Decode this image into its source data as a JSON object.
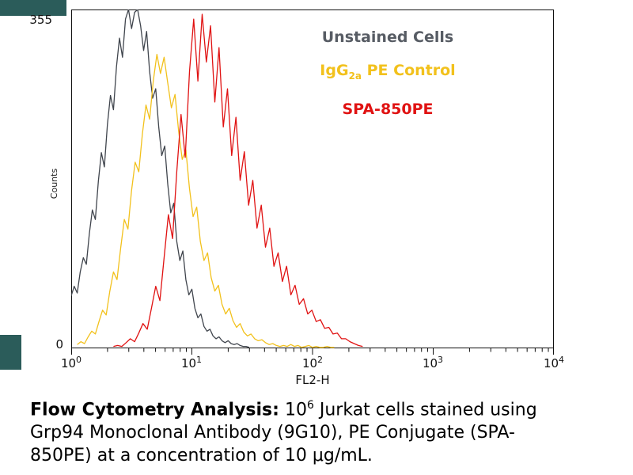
{
  "page": {
    "background": "#ffffff"
  },
  "watermark": {
    "color": "#2b5c5a"
  },
  "axis": {
    "y_max_label": "355",
    "y_min_label": "0",
    "y_title": "Counts",
    "x_title": "FL2-H",
    "x_ticks": [
      {
        "base": "10",
        "exp": "0"
      },
      {
        "base": "10",
        "exp": "1"
      },
      {
        "base": "10",
        "exp": "2"
      },
      {
        "base": "10",
        "exp": "3"
      },
      {
        "base": "10",
        "exp": "4"
      }
    ]
  },
  "legend": {
    "unstained": {
      "label": "Unstained Cells",
      "color": "#575c64"
    },
    "igg2a": {
      "pre": "IgG",
      "sub": "2a",
      "post": "  PE Control",
      "color": "#f2c11c"
    },
    "spa": {
      "label": "SPA-850PE",
      "color": "#e01212"
    }
  },
  "caption": {
    "bold": "Flow Cytometry Analysis:",
    "line1_pre_sup": " 10",
    "line1_sup": "6",
    "line1_rest": " Jurkat cells stained using",
    "line2": "Grp94 Monoclonal Antibody (9G10), PE Conjugate (SPA-",
    "line3": "850PE) at a concentration of 10 μg/mL."
  },
  "chart_data": {
    "type": "line",
    "subtype": "flow-cytometry-histogram",
    "title": "",
    "xlabel": "FL2-H",
    "ylabel": "Counts",
    "x_scale": "log10",
    "x_decades": [
      0,
      4
    ],
    "ylim": [
      0,
      355
    ],
    "y_tick_labels": [
      "0",
      "355"
    ],
    "grid": false,
    "legend_position": "top-right-inside",
    "series": [
      {
        "name": "Unstained Cells",
        "color": "#40454d",
        "x_start": 0.0,
        "x_step": 0.025,
        "values": [
          55,
          65,
          58,
          80,
          95,
          88,
          120,
          145,
          135,
          175,
          205,
          190,
          235,
          265,
          250,
          295,
          325,
          305,
          345,
          355,
          335,
          352,
          355,
          338,
          312,
          332,
          290,
          262,
          272,
          232,
          202,
          212,
          172,
          142,
          152,
          112,
          92,
          102,
          72,
          56,
          62,
          42,
          32,
          36,
          23,
          18,
          20,
          13,
          10,
          12,
          8,
          6,
          8,
          5,
          4,
          5,
          3,
          2,
          2,
          1
        ]
      },
      {
        "name": "IgG2a PE Control",
        "color": "#f2c11c",
        "x_start": 0.05,
        "x_step": 0.03,
        "values": [
          4,
          7,
          5,
          12,
          18,
          15,
          28,
          40,
          35,
          60,
          80,
          72,
          105,
          135,
          125,
          165,
          195,
          185,
          225,
          255,
          240,
          280,
          308,
          288,
          305,
          278,
          252,
          266,
          228,
          198,
          208,
          168,
          138,
          148,
          112,
          92,
          100,
          74,
          60,
          66,
          46,
          36,
          42,
          29,
          22,
          26,
          17,
          13,
          15,
          10,
          8,
          9,
          6,
          4,
          5,
          3,
          2,
          3,
          2,
          4,
          2,
          3,
          1,
          2,
          3,
          1,
          2,
          1,
          1,
          2,
          1,
          1
        ]
      },
      {
        "name": "SPA-850PE",
        "color": "#e01212",
        "x_start": 0.35,
        "x_step": 0.035,
        "values": [
          2,
          3,
          2,
          6,
          10,
          7,
          16,
          26,
          20,
          42,
          65,
          50,
          95,
          140,
          115,
          185,
          245,
          200,
          290,
          345,
          280,
          350,
          300,
          338,
          258,
          315,
          232,
          272,
          202,
          242,
          176,
          206,
          150,
          176,
          126,
          150,
          106,
          126,
          86,
          100,
          70,
          86,
          56,
          66,
          46,
          52,
          36,
          40,
          28,
          30,
          21,
          22,
          15,
          16,
          10,
          10,
          7,
          5,
          3,
          2
        ]
      }
    ]
  }
}
